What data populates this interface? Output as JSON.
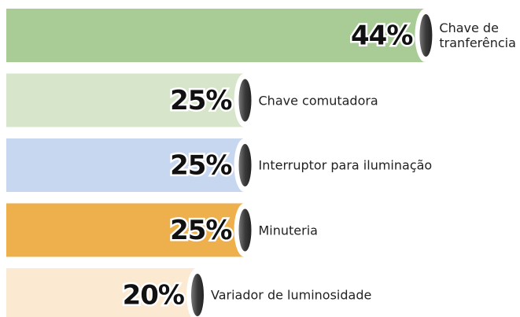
{
  "chart_data": {
    "type": "bar",
    "orientation": "horizontal",
    "categories": [
      "Chave de tranferência",
      "Chave comutadora",
      "Interruptor para iluminação",
      "Minuteria",
      "Variador de luminosidade"
    ],
    "values": [
      44,
      25,
      25,
      25,
      20
    ],
    "value_labels": [
      "44%",
      "25%",
      "25%",
      "25%",
      "20%"
    ],
    "colors": [
      "#a9cc96",
      "#d7e5cb",
      "#c6d7ef",
      "#eeb04c",
      "#fbe9d2"
    ]
  }
}
